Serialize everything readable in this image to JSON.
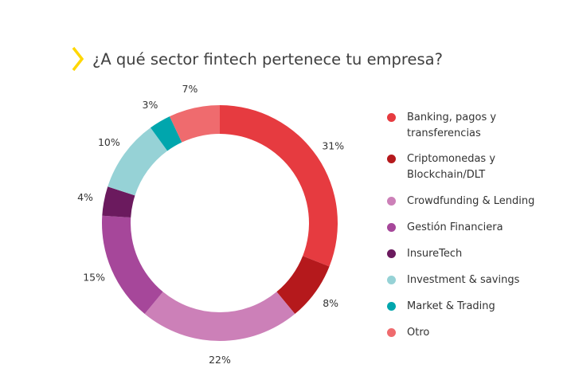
{
  "chart_data": {
    "type": "pie",
    "title": "¿A qué sector fintech pertenece tu empresa?",
    "categories": [
      "Banking, pagos y transferencias",
      "Criptomonedas y Blockchain/DLT",
      "Crowdfunding & Lending",
      "Gestión Financiera",
      "InsureTech",
      "Investment & savings",
      "Market & Trading",
      "Otro"
    ],
    "values": [
      31,
      8,
      22,
      15,
      4,
      10,
      3,
      7
    ],
    "value_labels": [
      "31%",
      "8%",
      "22%",
      "15%",
      "4%",
      "10%",
      "3%",
      "7%"
    ],
    "colors": [
      "#e63b40",
      "#b5191c",
      "#cc80b8",
      "#a6479a",
      "#6b1a5e",
      "#96d2d6",
      "#00a6ad",
      "#ef6b6e"
    ],
    "legend": "right",
    "style": "donut"
  },
  "title_icon_color": "#ffd700"
}
